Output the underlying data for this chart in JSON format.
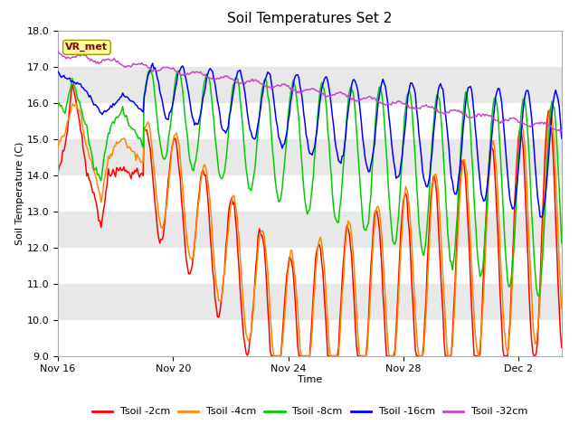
{
  "title": "Soil Temperatures Set 2",
  "xlabel": "Time",
  "ylabel": "Soil Temperature (C)",
  "ylim": [
    9.0,
    18.0
  ],
  "yticks": [
    9.0,
    10.0,
    11.0,
    12.0,
    13.0,
    14.0,
    15.0,
    16.0,
    17.0,
    18.0
  ],
  "xtick_labels": [
    "Nov 16",
    "Nov 20",
    "Nov 24",
    "Nov 28",
    "Dec 2"
  ],
  "annotation": "VR_met",
  "colors": {
    "Tsoil -2cm": "#ff0000",
    "Tsoil -4cm": "#ff8800",
    "Tsoil -8cm": "#00cc00",
    "Tsoil -16cm": "#0000ff",
    "Tsoil -32cm": "#cc44cc"
  },
  "bg_bands": [
    "#ffffff",
    "#e8e8e8"
  ],
  "legend_labels": [
    "Tsoil -2cm",
    "Tsoil -4cm",
    "Tsoil -8cm",
    "Tsoil -16cm",
    "Tsoil -32cm"
  ]
}
